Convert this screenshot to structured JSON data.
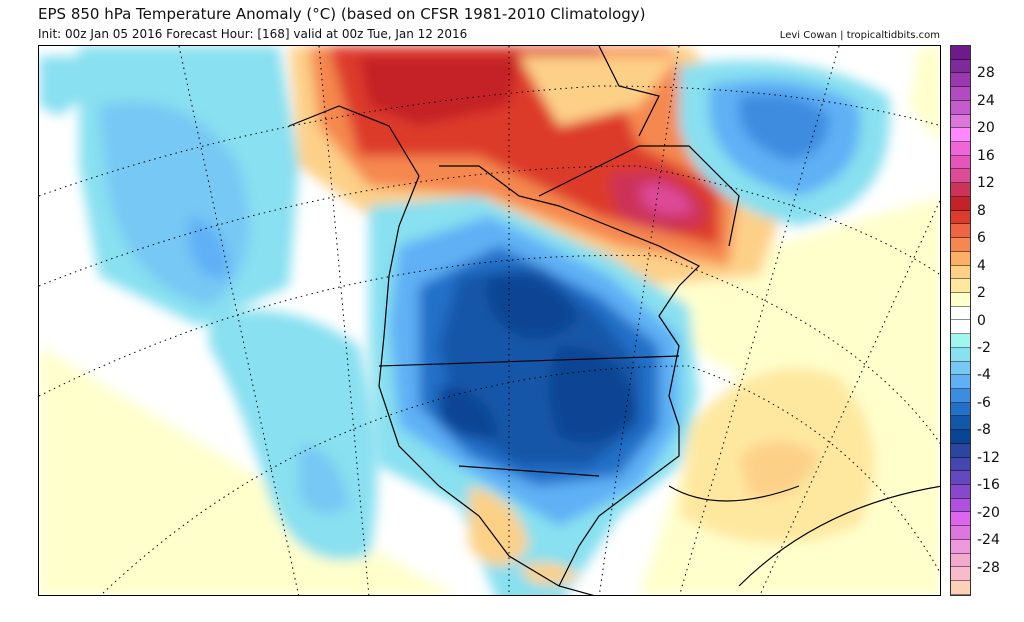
{
  "header": {
    "title": "EPS 850 hPa Temperature Anomaly (°C) (based on CFSR 1981-2010 Climatology)",
    "subtitle": "Init: 00z Jan 05 2016   Forecast Hour: [168]   valid at 00z Tue, Jan 12 2016",
    "credit": "Levi Cowan | tropicaltidbits.com"
  },
  "colorbar": {
    "colors": [
      "#6e1a8a",
      "#7f2a9c",
      "#9a38b0",
      "#b04cc0",
      "#c45ccc",
      "#dd77dd",
      "#ff88ff",
      "#f066d8",
      "#e655b8",
      "#dd4a96",
      "#cc3358",
      "#c42228",
      "#dd3b2c",
      "#ee6444",
      "#f58850",
      "#fcb066",
      "#fdd088",
      "#fee8a0",
      "#ffffcc",
      "#ffffff",
      "#ffffff",
      "#a0f7f0",
      "#88e0f0",
      "#77c8f4",
      "#5fb0f5",
      "#3c8ce0",
      "#2270c8",
      "#1257a8",
      "#0a4494",
      "#2a46a0",
      "#4646b0",
      "#6448c0",
      "#8848cc",
      "#b050e0",
      "#dd66ee",
      "#dd77dd",
      "#ee99dd",
      "#f4aacc",
      "#f8bbcc",
      "#fdd0b8"
    ],
    "labels": [
      {
        "text": "28",
        "boundary": 2
      },
      {
        "text": "24",
        "boundary": 4
      },
      {
        "text": "20",
        "boundary": 6
      },
      {
        "text": "16",
        "boundary": 8
      },
      {
        "text": "12",
        "boundary": 10
      },
      {
        "text": "8",
        "boundary": 12
      },
      {
        "text": "6",
        "boundary": 14
      },
      {
        "text": "4",
        "boundary": 16
      },
      {
        "text": "2",
        "boundary": 18
      },
      {
        "text": "0",
        "boundary": 20
      },
      {
        "text": "-2",
        "boundary": 22
      },
      {
        "text": "-4",
        "boundary": 24
      },
      {
        "text": "-6",
        "boundary": 26
      },
      {
        "text": "-8",
        "boundary": 28
      },
      {
        "text": "-12",
        "boundary": 30
      },
      {
        "text": "-16",
        "boundary": 32
      },
      {
        "text": "-20",
        "boundary": 34
      },
      {
        "text": "-24",
        "boundary": 36
      },
      {
        "text": "-28",
        "boundary": 38
      }
    ]
  }
}
